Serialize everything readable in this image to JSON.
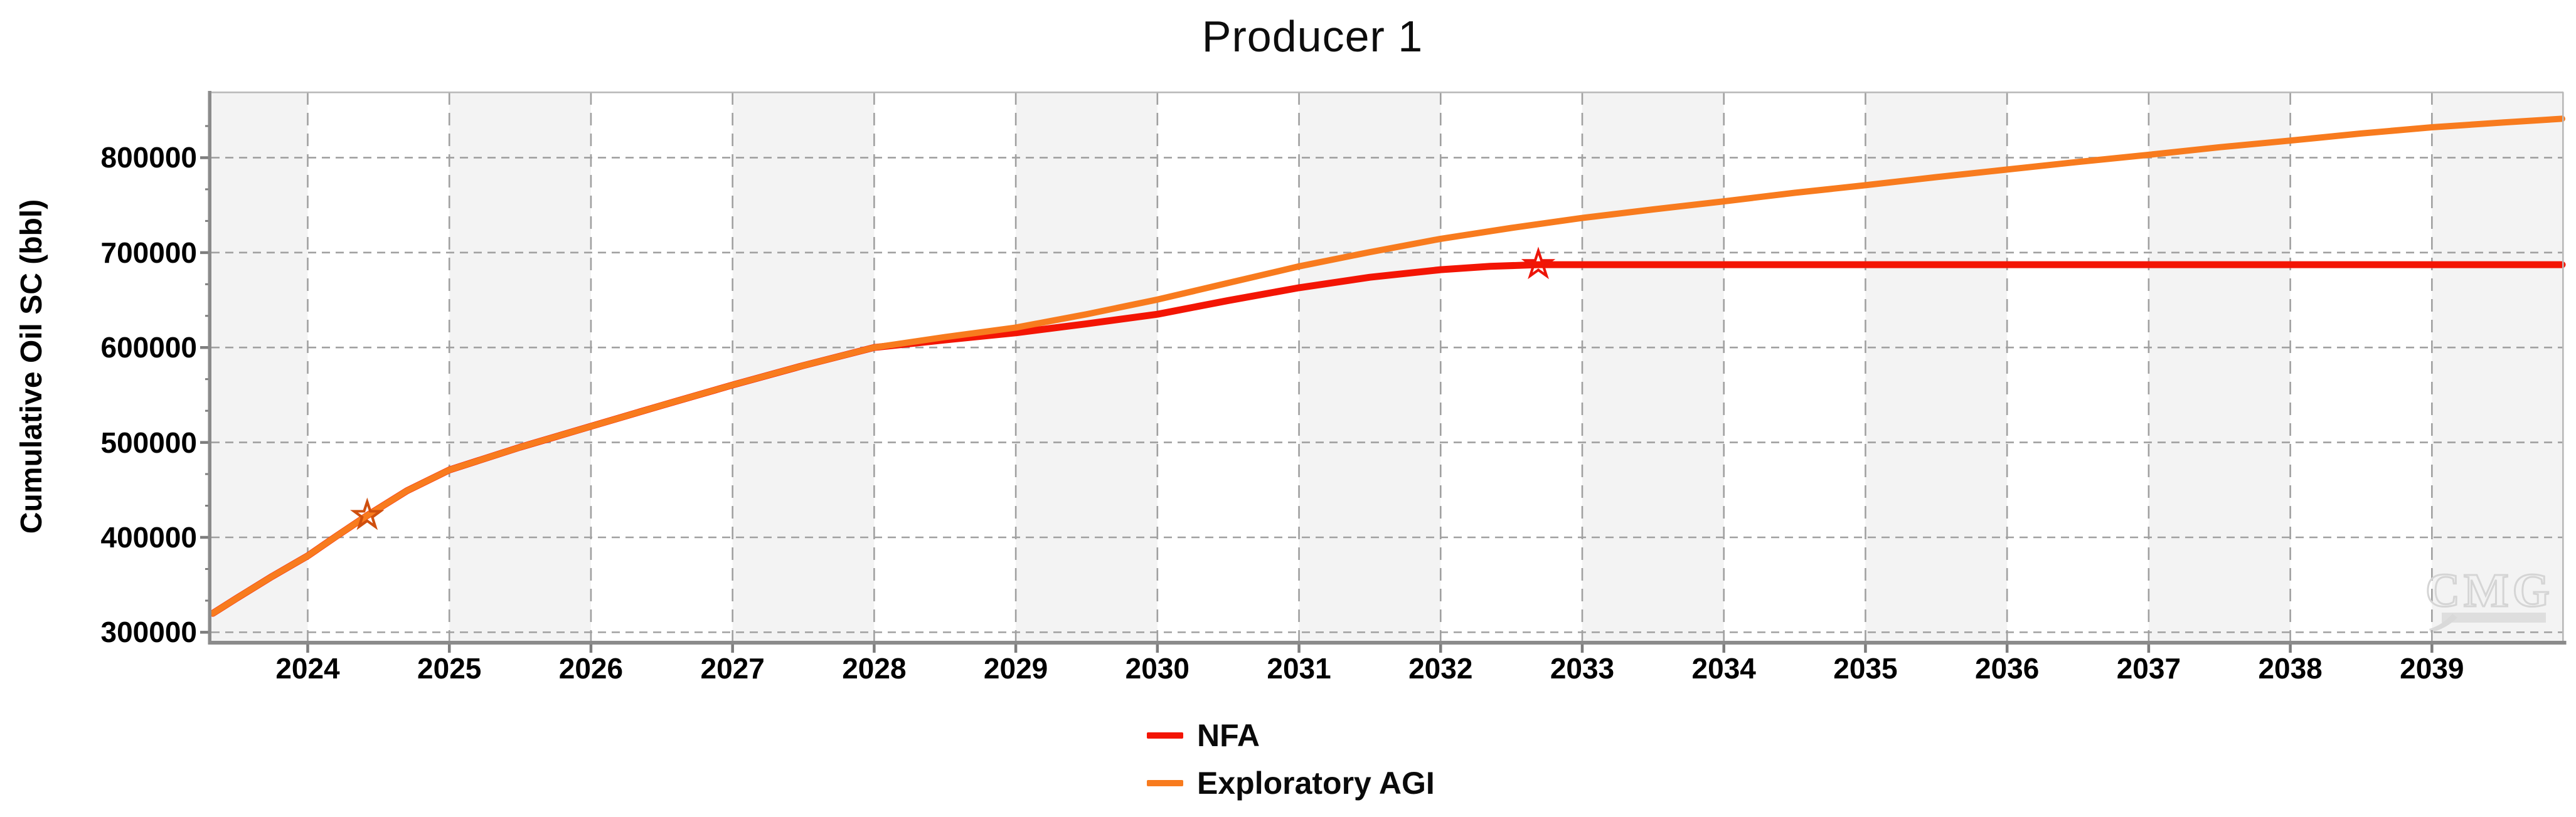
{
  "title": "Producer 1",
  "y_axis": {
    "label": "Cumulative Oil SC (bbl)"
  },
  "x_axis": {
    "label": ""
  },
  "legend": {
    "items": [
      {
        "label": "NFA",
        "color": "#f31504"
      },
      {
        "label": "Exploratory AGI",
        "color": "#f87b1e"
      }
    ]
  },
  "watermark": {
    "text": "CMG"
  },
  "colors": {
    "plot_bg": "#ffffff",
    "band_gray": "#f3f3f3",
    "gridline": "#a0a0a0",
    "spine": "#8b8b8b",
    "border": "#b9b9b9",
    "tick": "#7d7d7d",
    "watermark": "#d5d5d5",
    "nfa_red": "#f31504",
    "agi_orange": "#f87b1e"
  },
  "chart_data": {
    "type": "line",
    "title": "Producer 1",
    "xlabel": "",
    "ylabel": "Cumulative Oil SC (bbl)",
    "x_range": [
      2023.32,
      2039.92
    ],
    "y_range": [
      291000,
      869000
    ],
    "x_ticks": [
      2024,
      2025,
      2026,
      2027,
      2028,
      2029,
      2030,
      2031,
      2032,
      2033,
      2034,
      2035,
      2036,
      2037,
      2038,
      2039
    ],
    "y_ticks": [
      300000,
      400000,
      500000,
      600000,
      700000,
      800000
    ],
    "y_minor_divisions": 3,
    "grid": "dashed",
    "band_gray_years": [
      2023,
      2025,
      2027,
      2029,
      2031,
      2033,
      2035,
      2037,
      2039
    ],
    "legend_position": "bottom-center",
    "series": [
      {
        "name": "NFA",
        "color": "#f31504",
        "width": 11,
        "x": [
          2023.33,
          2023.5,
          2023.75,
          2024.0,
          2024.2,
          2024.42,
          2024.7,
          2025.0,
          2025.5,
          2026.0,
          2026.5,
          2027.0,
          2027.5,
          2028.0,
          2028.5,
          2029.0,
          2029.5,
          2030.0,
          2030.5,
          2031.0,
          2031.5,
          2032.0,
          2032.35,
          2032.69,
          2033.0,
          2034.0,
          2035.0,
          2036.0,
          2037.0,
          2038.0,
          2039.0,
          2039.92
        ],
        "y": [
          320000,
          336000,
          359000,
          380500,
          401000,
          423000,
          449000,
          471000,
          495000,
          517000,
          539000,
          560500,
          581000,
          600000,
          608000,
          615500,
          625000,
          635000,
          649500,
          663000,
          674000,
          682000,
          685500,
          687300,
          687300,
          687300,
          687300,
          687300,
          687300,
          687300,
          687300,
          687300
        ]
      },
      {
        "name": "Exploratory AGI",
        "color": "#f87b1e",
        "width": 10,
        "x": [
          2023.33,
          2023.5,
          2023.75,
          2024.0,
          2024.2,
          2024.42,
          2024.7,
          2025.0,
          2025.5,
          2026.0,
          2026.5,
          2027.0,
          2027.5,
          2028.0,
          2028.5,
          2029.0,
          2029.5,
          2030.0,
          2030.5,
          2031.0,
          2031.5,
          2032.0,
          2032.5,
          2033.0,
          2033.5,
          2034.0,
          2034.5,
          2035.0,
          2035.5,
          2036.0,
          2036.5,
          2037.0,
          2037.5,
          2038.0,
          2038.5,
          2039.0,
          2039.5,
          2039.92
        ],
        "y": [
          320000,
          336000,
          359000,
          380500,
          401000,
          423000,
          449000,
          471000,
          495000,
          517000,
          539000,
          560500,
          581000,
          600000,
          611000,
          621000,
          635000,
          650500,
          668000,
          685500,
          700500,
          714500,
          726000,
          736500,
          745500,
          754000,
          763000,
          771000,
          779500,
          787500,
          795500,
          803000,
          811000,
          818000,
          825500,
          832000,
          837000,
          841000
        ]
      }
    ],
    "markers": [
      {
        "shape": "star",
        "x": 2024.42,
        "y": 423000,
        "color": "#cf4f0e"
      },
      {
        "shape": "star",
        "x": 2032.69,
        "y": 687300,
        "color": "#ed1509"
      }
    ]
  }
}
